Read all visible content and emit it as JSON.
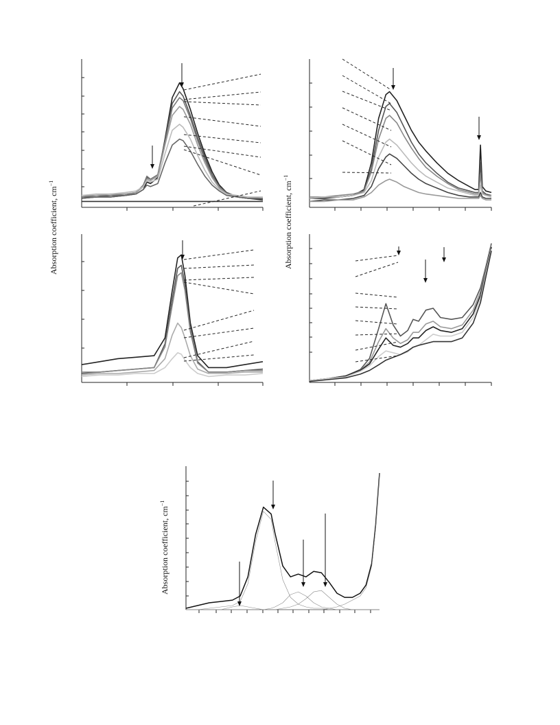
{
  "figure": {
    "ylabel_text": "Absorption coefficient, cm",
    "ylabel_exponent": "−1"
  },
  "chart_data": [
    {
      "type": "line",
      "panel": "top-left",
      "title": "",
      "xlabel": "",
      "ylabel": "Absorption coefficient, cm−1",
      "axis_labels_shown": false,
      "grid": false,
      "x": [
        0,
        0.08,
        0.16,
        0.24,
        0.3,
        0.34,
        0.36,
        0.38,
        0.42,
        0.46,
        0.5,
        0.54,
        0.56,
        0.6,
        0.64,
        0.68,
        0.72,
        0.76,
        0.8,
        0.86,
        0.92,
        1.0
      ],
      "series": [
        {
          "color": "#222222",
          "values": [
            0.06,
            0.07,
            0.07,
            0.08,
            0.09,
            0.12,
            0.17,
            0.16,
            0.2,
            0.46,
            0.74,
            0.84,
            0.8,
            0.66,
            0.5,
            0.36,
            0.24,
            0.15,
            0.1,
            0.07,
            0.06,
            0.05
          ]
        },
        {
          "color": "#555555",
          "values": [
            0.07,
            0.07,
            0.08,
            0.08,
            0.1,
            0.14,
            0.2,
            0.19,
            0.22,
            0.45,
            0.7,
            0.78,
            0.75,
            0.62,
            0.47,
            0.34,
            0.22,
            0.14,
            0.1,
            0.07,
            0.06,
            0.06
          ]
        },
        {
          "color": "#777777",
          "values": [
            0.07,
            0.08,
            0.08,
            0.09,
            0.1,
            0.15,
            0.21,
            0.19,
            0.22,
            0.44,
            0.67,
            0.74,
            0.72,
            0.6,
            0.45,
            0.32,
            0.21,
            0.14,
            0.09,
            0.07,
            0.06,
            0.06
          ]
        },
        {
          "color": "#999999",
          "values": [
            0.08,
            0.08,
            0.09,
            0.09,
            0.1,
            0.14,
            0.19,
            0.18,
            0.21,
            0.42,
            0.62,
            0.68,
            0.66,
            0.56,
            0.42,
            0.3,
            0.2,
            0.13,
            0.09,
            0.07,
            0.07,
            0.06
          ]
        },
        {
          "color": "#bbbbbb",
          "values": [
            0.08,
            0.09,
            0.09,
            0.1,
            0.11,
            0.14,
            0.18,
            0.17,
            0.19,
            0.36,
            0.52,
            0.56,
            0.54,
            0.46,
            0.35,
            0.25,
            0.17,
            0.12,
            0.09,
            0.08,
            0.07,
            0.07
          ]
        },
        {
          "color": "#666666",
          "values": [
            0.06,
            0.07,
            0.07,
            0.08,
            0.09,
            0.12,
            0.15,
            0.14,
            0.16,
            0.3,
            0.42,
            0.46,
            0.45,
            0.38,
            0.29,
            0.21,
            0.15,
            0.11,
            0.08,
            0.07,
            0.06,
            0.06
          ]
        },
        {
          "color": "#333333",
          "values": [
            0.04,
            0.04,
            0.04,
            0.04,
            0.04,
            0.04,
            0.04,
            0.04,
            0.04,
            0.04,
            0.04,
            0.04,
            0.04,
            0.04,
            0.04,
            0.04,
            0.04,
            0.04,
            0.04,
            0.04,
            0.04,
            0.04
          ]
        }
      ]
    },
    {
      "type": "line",
      "panel": "top-right",
      "title": "",
      "xlabel": "",
      "ylabel": "Absorption coefficient, cm−1",
      "axis_labels_shown": false,
      "grid": false,
      "x": [
        0,
        0.08,
        0.16,
        0.24,
        0.3,
        0.34,
        0.38,
        0.42,
        0.44,
        0.48,
        0.52,
        0.56,
        0.6,
        0.64,
        0.7,
        0.76,
        0.82,
        0.88,
        0.91,
        0.93,
        0.94,
        0.95,
        0.97,
        1.0
      ],
      "series": [
        {
          "color": "#222222",
          "values": [
            0.06,
            0.06,
            0.07,
            0.08,
            0.12,
            0.3,
            0.6,
            0.76,
            0.78,
            0.72,
            0.62,
            0.52,
            0.44,
            0.38,
            0.3,
            0.23,
            0.18,
            0.14,
            0.12,
            0.12,
            0.42,
            0.14,
            0.11,
            0.1
          ]
        },
        {
          "color": "#555555",
          "values": [
            0.06,
            0.07,
            0.07,
            0.08,
            0.11,
            0.26,
            0.52,
            0.68,
            0.7,
            0.64,
            0.54,
            0.44,
            0.36,
            0.3,
            0.23,
            0.17,
            0.13,
            0.11,
            0.1,
            0.1,
            0.3,
            0.11,
            0.09,
            0.08
          ]
        },
        {
          "color": "#888888",
          "values": [
            0.07,
            0.07,
            0.08,
            0.09,
            0.11,
            0.24,
            0.46,
            0.6,
            0.62,
            0.57,
            0.48,
            0.4,
            0.33,
            0.27,
            0.21,
            0.16,
            0.12,
            0.1,
            0.09,
            0.09,
            0.22,
            0.1,
            0.08,
            0.08
          ]
        },
        {
          "color": "#bbbbbb",
          "values": [
            0.06,
            0.07,
            0.07,
            0.08,
            0.1,
            0.18,
            0.34,
            0.44,
            0.46,
            0.42,
            0.36,
            0.3,
            0.25,
            0.21,
            0.17,
            0.13,
            0.11,
            0.09,
            0.08,
            0.08,
            0.15,
            0.09,
            0.08,
            0.07
          ]
        },
        {
          "color": "#444444",
          "values": [
            0.04,
            0.05,
            0.05,
            0.06,
            0.08,
            0.14,
            0.26,
            0.34,
            0.36,
            0.33,
            0.28,
            0.23,
            0.19,
            0.16,
            0.13,
            0.1,
            0.08,
            0.07,
            0.07,
            0.07,
            0.1,
            0.07,
            0.06,
            0.06
          ]
        },
        {
          "color": "#999999",
          "values": [
            0.04,
            0.04,
            0.05,
            0.05,
            0.07,
            0.1,
            0.15,
            0.18,
            0.19,
            0.17,
            0.14,
            0.12,
            0.1,
            0.09,
            0.08,
            0.07,
            0.06,
            0.06,
            0.06,
            0.06,
            0.08,
            0.06,
            0.05,
            0.05
          ]
        }
      ]
    },
    {
      "type": "line",
      "panel": "middle-left",
      "title": "",
      "xlabel": "",
      "ylabel": "Absorption coefficient, cm−1",
      "axis_labels_shown": false,
      "grid": false,
      "x": [
        0,
        0.1,
        0.2,
        0.3,
        0.4,
        0.46,
        0.5,
        0.53,
        0.55,
        0.57,
        0.6,
        0.64,
        0.7,
        0.8,
        0.9,
        1.0
      ],
      "series": [
        {
          "color": "#222222",
          "values": [
            0.12,
            0.14,
            0.16,
            0.17,
            0.18,
            0.3,
            0.62,
            0.84,
            0.86,
            0.72,
            0.4,
            0.18,
            0.1,
            0.1,
            0.12,
            0.14
          ]
        },
        {
          "color": "#555555",
          "values": [
            0.06,
            0.07,
            0.08,
            0.09,
            0.1,
            0.26,
            0.56,
            0.77,
            0.79,
            0.66,
            0.36,
            0.14,
            0.07,
            0.07,
            0.08,
            0.09
          ]
        },
        {
          "color": "#888888",
          "values": [
            0.07,
            0.07,
            0.08,
            0.09,
            0.1,
            0.24,
            0.52,
            0.72,
            0.74,
            0.62,
            0.34,
            0.13,
            0.07,
            0.07,
            0.08,
            0.08
          ]
        },
        {
          "color": "#aaaaaa",
          "values": [
            0.05,
            0.06,
            0.06,
            0.07,
            0.08,
            0.16,
            0.32,
            0.4,
            0.37,
            0.3,
            0.18,
            0.09,
            0.06,
            0.06,
            0.07,
            0.07
          ]
        },
        {
          "color": "#cccccc",
          "values": [
            0.04,
            0.05,
            0.05,
            0.06,
            0.06,
            0.1,
            0.16,
            0.2,
            0.19,
            0.15,
            0.1,
            0.06,
            0.04,
            0.05,
            0.05,
            0.06
          ]
        }
      ]
    },
    {
      "type": "line",
      "panel": "middle-right",
      "title": "",
      "xlabel": "",
      "ylabel": "Absorption coefficient, cm−1",
      "axis_labels_shown": false,
      "grid": false,
      "x": [
        0,
        0.1,
        0.2,
        0.28,
        0.33,
        0.38,
        0.42,
        0.46,
        0.5,
        0.54,
        0.57,
        0.6,
        0.64,
        0.68,
        0.72,
        0.78,
        0.84,
        0.9,
        0.94,
        0.97,
        1.0
      ],
      "series": [
        {
          "color": "#555555",
          "values": [
            0.02,
            0.04,
            0.07,
            0.14,
            0.26,
            0.58,
            0.85,
            0.62,
            0.5,
            0.56,
            0.68,
            0.66,
            0.78,
            0.8,
            0.7,
            0.68,
            0.7,
            0.84,
            1.02,
            1.25,
            1.5
          ]
        },
        {
          "color": "#999999",
          "values": [
            0.02,
            0.04,
            0.07,
            0.13,
            0.22,
            0.44,
            0.58,
            0.48,
            0.42,
            0.46,
            0.54,
            0.54,
            0.63,
            0.66,
            0.6,
            0.58,
            0.62,
            0.78,
            0.98,
            1.22,
            1.48
          ]
        },
        {
          "color": "#222222",
          "values": [
            0.02,
            0.04,
            0.07,
            0.13,
            0.2,
            0.36,
            0.48,
            0.4,
            0.38,
            0.42,
            0.48,
            0.48,
            0.56,
            0.6,
            0.56,
            0.54,
            0.58,
            0.74,
            0.94,
            1.2,
            1.46
          ]
        },
        {
          "color": "#cccccc",
          "values": [
            0.02,
            0.04,
            0.06,
            0.12,
            0.18,
            0.28,
            0.34,
            0.32,
            0.3,
            0.33,
            0.38,
            0.4,
            0.46,
            0.52,
            0.5,
            0.5,
            0.54,
            0.7,
            0.9,
            1.18,
            1.44
          ]
        },
        {
          "color": "#333333",
          "values": [
            0.01,
            0.03,
            0.05,
            0.09,
            0.13,
            0.19,
            0.24,
            0.27,
            0.3,
            0.34,
            0.38,
            0.4,
            0.42,
            0.44,
            0.44,
            0.44,
            0.48,
            0.64,
            0.86,
            1.14,
            1.42
          ]
        }
      ]
    },
    {
      "type": "line",
      "panel": "bottom",
      "title": "",
      "xlabel": "",
      "ylabel": "Absorption coefficient, cm−1",
      "axis_labels_shown": false,
      "grid": false,
      "x": [
        0,
        0.06,
        0.12,
        0.18,
        0.24,
        0.28,
        0.32,
        0.36,
        0.4,
        0.44,
        0.46,
        0.5,
        0.54,
        0.58,
        0.62,
        0.66,
        0.7,
        0.74,
        0.78,
        0.82,
        0.86,
        0.9,
        0.93,
        0.96,
        0.98,
        1.0
      ],
      "series": [
        {
          "name": "",
          "color": "#111111",
          "width": 1.5,
          "values": [
            0.01,
            0.03,
            0.05,
            0.06,
            0.07,
            0.1,
            0.24,
            0.55,
            0.75,
            0.7,
            0.56,
            0.32,
            0.24,
            0.26,
            0.24,
            0.28,
            0.27,
            0.2,
            0.12,
            0.09,
            0.09,
            0.12,
            0.18,
            0.34,
            0.62,
            1.0
          ]
        },
        {
          "name": "",
          "color": "#888888",
          "width": 0.6,
          "values": [
            0.0,
            0.0,
            0.01,
            0.02,
            0.03,
            0.06,
            0.19,
            0.5,
            0.72,
            0.66,
            0.5,
            0.22,
            0.09,
            0.04,
            0.02,
            0.01,
            0.01,
            0.0,
            0.0,
            0.0,
            0.0,
            0.0,
            0.0,
            0.0,
            0.0,
            0.0
          ]
        },
        {
          "name": "",
          "color": "#888888",
          "width": 0.6,
          "values": [
            0.0,
            0.0,
            0.0,
            0.0,
            0.02,
            0.03,
            0.02,
            0.01,
            0.0,
            0.0,
            0.0,
            0.0,
            0.0,
            0.0,
            0.0,
            0.0,
            0.0,
            0.0,
            0.0,
            0.0,
            0.0,
            0.0,
            0.0,
            0.0,
            0.0,
            0.0
          ]
        },
        {
          "name": "",
          "color": "#888888",
          "width": 0.6,
          "values": [
            0.0,
            0.0,
            0.0,
            0.0,
            0.0,
            0.0,
            0.0,
            0.0,
            0.0,
            0.01,
            0.02,
            0.05,
            0.11,
            0.13,
            0.1,
            0.05,
            0.02,
            0.01,
            0.0,
            0.0,
            0.0,
            0.0,
            0.0,
            0.0,
            0.0,
            0.0
          ]
        },
        {
          "name": "",
          "color": "#888888",
          "width": 0.6,
          "values": [
            0.0,
            0.0,
            0.0,
            0.0,
            0.0,
            0.0,
            0.0,
            0.0,
            0.0,
            0.0,
            0.0,
            0.01,
            0.02,
            0.04,
            0.08,
            0.13,
            0.14,
            0.09,
            0.04,
            0.01,
            0.0,
            0.0,
            0.0,
            0.0,
            0.0,
            0.0
          ]
        },
        {
          "name": "",
          "color": "#888888",
          "width": 0.6,
          "values": [
            0.0,
            0.0,
            0.0,
            0.0,
            0.0,
            0.0,
            0.0,
            0.0,
            0.0,
            0.0,
            0.0,
            0.0,
            0.0,
            0.0,
            0.0,
            0.0,
            0.0,
            0.01,
            0.02,
            0.04,
            0.07,
            0.1,
            0.16,
            0.32,
            0.6,
            1.0
          ]
        }
      ]
    }
  ]
}
